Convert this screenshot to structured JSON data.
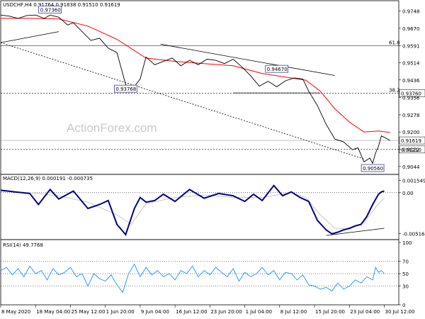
{
  "chart_data": {
    "type": "line",
    "price_panel": {
      "header": "USDCHF,H4  0.91764 0.91838 0.91510 0.91619",
      "watermark": "ActionForex.com",
      "y_ticks": [
        0.9748,
        0.967,
        0.9591,
        0.9514,
        0.9436,
        0.9356,
        0.9278,
        0.92,
        0.9122,
        0.9044
      ],
      "ylim": [
        0.9008,
        0.9795
      ],
      "current_price": 0.91619,
      "current_price_label": "0.91619",
      "levels": [
        {
          "name": "fib-61.8",
          "value": 0.9591,
          "label": "61.8",
          "style": "solid"
        },
        {
          "name": "fib-38.2",
          "value": 0.9376,
          "label": "38.2",
          "style": "dashed",
          "price_label": "0.93760"
        },
        {
          "name": "support",
          "value": 0.9121,
          "label": "0.91210",
          "style": "dashed"
        }
      ],
      "annotations": [
        {
          "text": "0.97360",
          "x": 17,
          "y": 0.9736
        },
        {
          "text": "0.93768",
          "x": 43,
          "y": 0.9377
        },
        {
          "text": "0.94670",
          "x": 95,
          "y": 0.9467
        },
        {
          "text": "0.90560",
          "x": 128,
          "y": 0.9056
        }
      ],
      "trendlines": [
        {
          "x": [
            0,
            20
          ],
          "y": [
            0.9605,
            0.9655
          ]
        },
        {
          "x": [
            0,
            125
          ],
          "y": [
            0.9605,
            0.9078
          ]
        },
        {
          "x": [
            55,
            115
          ],
          "y": [
            0.9598,
            0.9456
          ]
        },
        {
          "x": [
            80,
            110
          ],
          "y": [
            0.9377,
            0.9377
          ]
        }
      ],
      "price_series": {
        "x": [
          0,
          3,
          6,
          9,
          12,
          15,
          17,
          20,
          23,
          25,
          28,
          31,
          34,
          37,
          40,
          43,
          45,
          48,
          50,
          53,
          56,
          59,
          62,
          65,
          68,
          71,
          74,
          77,
          80,
          83,
          86,
          89,
          92,
          95,
          98,
          101,
          104,
          106,
          109,
          112,
          115,
          118,
          121,
          123,
          125,
          127,
          128,
          129,
          130,
          131,
          132,
          134
        ],
        "values": [
          0.973,
          0.9725,
          0.9715,
          0.9728,
          0.973,
          0.9715,
          0.973,
          0.972,
          0.9685,
          0.9695,
          0.9655,
          0.9615,
          0.9625,
          0.958,
          0.956,
          0.9415,
          0.939,
          0.944,
          0.954,
          0.9505,
          0.952,
          0.9535,
          0.95,
          0.9525,
          0.9505,
          0.953,
          0.9525,
          0.951,
          0.953,
          0.9495,
          0.9455,
          0.9408,
          0.943,
          0.9405,
          0.9432,
          0.9445,
          0.944,
          0.9385,
          0.932,
          0.9235,
          0.9168,
          0.9155,
          0.912,
          0.9128,
          0.9065,
          0.9082,
          0.9058,
          0.9105,
          0.9135,
          0.9182,
          0.9176,
          0.9162
        ]
      },
      "ma_series": {
        "x": [
          0,
          10,
          20,
          30,
          40,
          50,
          60,
          70,
          80,
          90,
          100,
          105,
          110,
          115,
          120,
          125,
          130,
          134
        ],
        "values": [
          0.9715,
          0.9715,
          0.9712,
          0.968,
          0.962,
          0.9535,
          0.952,
          0.951,
          0.95,
          0.9465,
          0.9445,
          0.9435,
          0.9385,
          0.9305,
          0.9245,
          0.92,
          0.9205,
          0.9198
        ]
      },
      "colors": {
        "price": "#000000",
        "ma": "#ff0000",
        "trendline": "#000000",
        "grid": "#000000"
      }
    },
    "macd_panel": {
      "header": "MACD(12,26,9) 0.000191 -0.000735",
      "y_ticks_labels": [
        "0.001549",
        "0.00",
        "-0.005164"
      ],
      "y_ticks_values": [
        0.001549,
        0.0,
        -0.005164
      ],
      "ylim": [
        -0.00575,
        0.00195
      ],
      "macd": {
        "x": [
          0,
          5,
          10,
          13,
          17,
          20,
          25,
          30,
          34,
          37,
          40,
          43,
          46,
          48,
          50,
          53,
          56,
          60,
          65,
          70,
          75,
          80,
          84,
          87,
          90,
          94,
          97,
          100,
          103,
          106,
          109,
          112,
          114,
          116,
          118,
          120,
          122,
          124,
          126,
          128,
          130,
          131,
          132
        ],
        "values": [
          0.0003,
          0.0001,
          -0.0001,
          -0.0015,
          0.0004,
          -0.0008,
          0.0002,
          -0.002,
          -0.0015,
          -0.001,
          -0.004,
          -0.0053,
          -0.002,
          -0.0006,
          -0.0012,
          -0.001,
          -0.0002,
          -0.0011,
          0.0004,
          -0.0007,
          -0.0001,
          -0.0004,
          -0.0011,
          -0.0002,
          -0.001,
          0.0009,
          -0.0004,
          0.0001,
          -0.0006,
          -0.0011,
          -0.0035,
          -0.0047,
          -0.0052,
          -0.005,
          -0.0047,
          -0.0045,
          -0.0042,
          -0.004,
          -0.003,
          -0.0015,
          -0.0002,
          0.0001,
          0.0002
        ]
      },
      "signal": {
        "x": [
          0,
          10,
          20,
          30,
          40,
          45,
          50,
          60,
          70,
          80,
          90,
          100,
          105,
          110,
          115,
          120,
          125,
          130,
          132
        ],
        "values": [
          0.0002,
          0.0,
          -0.0004,
          -0.0012,
          -0.0028,
          -0.004,
          -0.0014,
          -0.0006,
          -0.0003,
          -0.0006,
          -0.0006,
          0.0,
          -0.0006,
          -0.0028,
          -0.0045,
          -0.0046,
          -0.0038,
          -0.0014,
          -0.0007
        ]
      },
      "trendline": {
        "x": [
          112,
          132
        ],
        "y": [
          -0.0054,
          -0.0045
        ]
      },
      "colors": {
        "macd": "#00008b",
        "signal": "#c8c8c8"
      }
    },
    "rsi_panel": {
      "header": "RSI(14) 49.7768",
      "y_ticks": [
        100,
        70,
        50,
        30,
        0
      ],
      "ylim": [
        0,
        100
      ],
      "levels": [
        70,
        50,
        30
      ],
      "rsi": {
        "x": [
          0,
          2,
          4,
          6,
          8,
          10,
          12,
          14,
          16,
          18,
          20,
          22,
          24,
          26,
          28,
          30,
          32,
          34,
          36,
          38,
          40,
          42,
          44,
          46,
          48,
          50,
          52,
          54,
          56,
          58,
          60,
          62,
          64,
          66,
          68,
          70,
          72,
          74,
          76,
          78,
          80,
          82,
          84,
          86,
          88,
          90,
          92,
          94,
          96,
          98,
          100,
          102,
          104,
          106,
          108,
          110,
          112,
          114,
          116,
          118,
          120,
          122,
          124,
          126,
          128,
          129,
          130,
          131,
          132
        ],
        "values": [
          55,
          60,
          48,
          58,
          45,
          62,
          50,
          55,
          40,
          58,
          48,
          52,
          60,
          45,
          50,
          30,
          50,
          42,
          38,
          48,
          32,
          20,
          50,
          65,
          45,
          60,
          48,
          55,
          45,
          50,
          40,
          55,
          50,
          62,
          45,
          55,
          48,
          60,
          52,
          45,
          58,
          38,
          52,
          45,
          50,
          60,
          48,
          55,
          40,
          52,
          50,
          40,
          48,
          32,
          30,
          25,
          28,
          22,
          35,
          25,
          30,
          40,
          35,
          45,
          40,
          60,
          52,
          55,
          50
        ]
      },
      "colors": {
        "rsi": "#1e90ff",
        "levels": "#000000"
      }
    },
    "x_axis": {
      "tick_labels": [
        "8 May 2020",
        "18 May 04:00",
        "25 May 12:00",
        "1 Jun 20:00",
        "9 Jun 04:00",
        "16 Jun 12:00",
        "23 Jun 20:00",
        "1 Jul 04:00",
        "8 Jul 12:00",
        "15 Jul 20:00",
        "23 Jul 04:00",
        "30 Jul 12:00"
      ],
      "tick_positions": [
        0,
        12,
        24,
        36,
        48,
        60,
        72,
        84,
        96,
        108,
        120,
        132
      ],
      "xlim": [
        0,
        137
      ]
    }
  }
}
